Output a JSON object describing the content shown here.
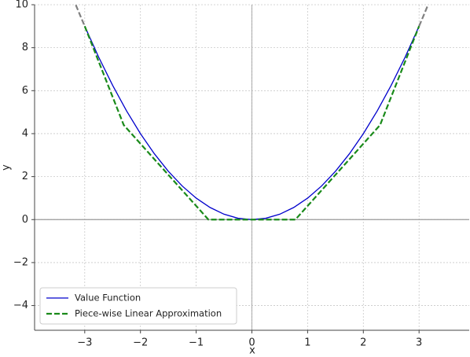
{
  "chart_data": {
    "type": "line",
    "x_label": "x",
    "y_label": "y",
    "series": [
      {
        "name": "Value Function",
        "color": "#0000cc",
        "dash": false,
        "x": [
          -3,
          -2.75,
          -2.5,
          -2.25,
          -2,
          -1.75,
          -1.5,
          -1.25,
          -1,
          -0.75,
          -0.5,
          -0.25,
          0,
          0.25,
          0.5,
          0.75,
          1,
          1.25,
          1.5,
          1.75,
          2,
          2.25,
          2.5,
          2.75,
          3
        ],
        "values": [
          9,
          7.5625,
          6.25,
          5.0625,
          4,
          3.0625,
          2.25,
          1.5625,
          1,
          0.5625,
          0.25,
          0.0625,
          0,
          0.0625,
          0.25,
          0.5625,
          1,
          1.5625,
          2.25,
          3.0625,
          4,
          5.0625,
          6.25,
          7.5625,
          9
        ]
      },
      {
        "name": "Piece-wise Linear Approximation",
        "color": "#1a8a1a",
        "dash": true,
        "x": [
          -3,
          -2.3,
          -0.78,
          0.78,
          2.3,
          3
        ],
        "values": [
          9,
          4.4,
          0,
          0,
          4.4,
          9
        ]
      },
      {
        "color": "#808080",
        "dash": true,
        "x": [
          -3.16,
          -3.08,
          -3,
          0,
          3,
          3.08,
          3.16
        ],
        "values": [
          9.99,
          9.49,
          9,
          null,
          9,
          9.49,
          9.99
        ]
      }
    ],
    "xlim": [
      -3.9,
      3.9
    ],
    "ylim": [
      -5.15,
      10
    ],
    "xticks": [
      {
        "value": -3,
        "label": "−3"
      },
      {
        "value": -2,
        "label": "−2"
      },
      {
        "value": -1,
        "label": "−1"
      },
      0,
      1,
      2,
      3
    ],
    "yticks": [
      {
        "value": -4,
        "label": "−4"
      },
      {
        "value": -2,
        "label": "−2"
      },
      0,
      2,
      4,
      6,
      8,
      10
    ],
    "grid": true,
    "legend": "lower left"
  }
}
